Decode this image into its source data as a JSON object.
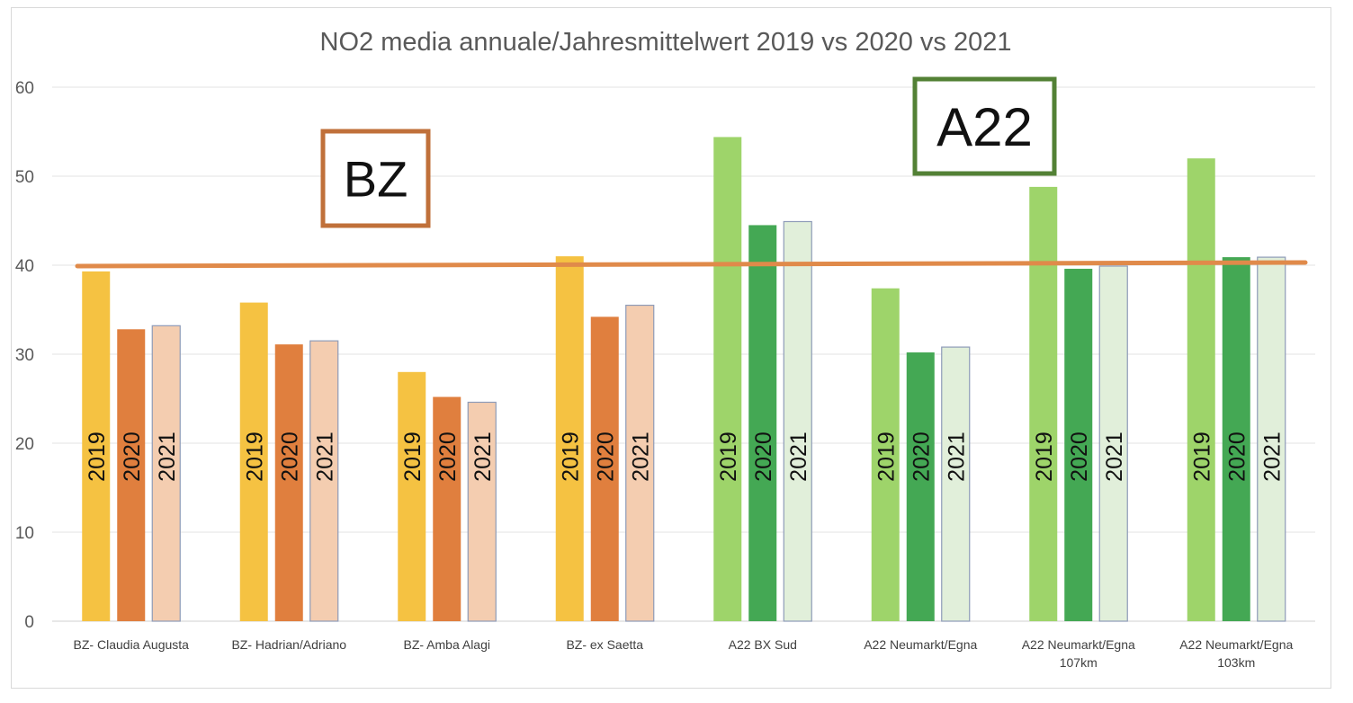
{
  "chart_data": {
    "type": "bar",
    "title": "NO2 media annuale/Jahresmittelwert 2019 vs 2020 vs 2021",
    "ylim": [
      0,
      60
    ],
    "yticks": [
      0,
      10,
      20,
      30,
      40,
      50,
      60
    ],
    "grid": true,
    "categories": [
      [
        "BZ- Claudia Augusta"
      ],
      [
        "BZ- Hadrian/Adriano"
      ],
      [
        "BZ- Amba Alagi"
      ],
      [
        "BZ- ex Saetta"
      ],
      [
        "A22 BX Sud"
      ],
      [
        "A22 Neumarkt/Egna"
      ],
      [
        "A22 Neumarkt/Egna",
        "107km"
      ],
      [
        "A22 Neumarkt/Egna",
        "103km"
      ]
    ],
    "series": [
      {
        "name": "2019",
        "values": [
          39.3,
          35.8,
          28.0,
          41.0,
          54.4,
          37.4,
          48.8,
          52.0
        ]
      },
      {
        "name": "2020",
        "values": [
          32.8,
          31.1,
          25.2,
          34.2,
          44.5,
          30.2,
          39.6,
          40.9
        ]
      },
      {
        "name": "2021",
        "values": [
          33.2,
          31.5,
          24.6,
          35.5,
          44.9,
          30.8,
          39.9,
          40.9
        ]
      }
    ],
    "colors": {
      "bz": [
        "#f5c242",
        "#e07f3e",
        "#f4cdb0"
      ],
      "a22": [
        "#9ed46a",
        "#44a854",
        "#e1efda"
      ],
      "bar_outline_2021": "#8e9bb8",
      "limit_line": "#e08a4a",
      "bz_box": "#c0703a",
      "a22_box": "#538135"
    },
    "limit_line": {
      "value": 40
    },
    "annotations": [
      {
        "text": "BZ",
        "group": "bz"
      },
      {
        "text": "A22",
        "group": "a22"
      }
    ]
  }
}
